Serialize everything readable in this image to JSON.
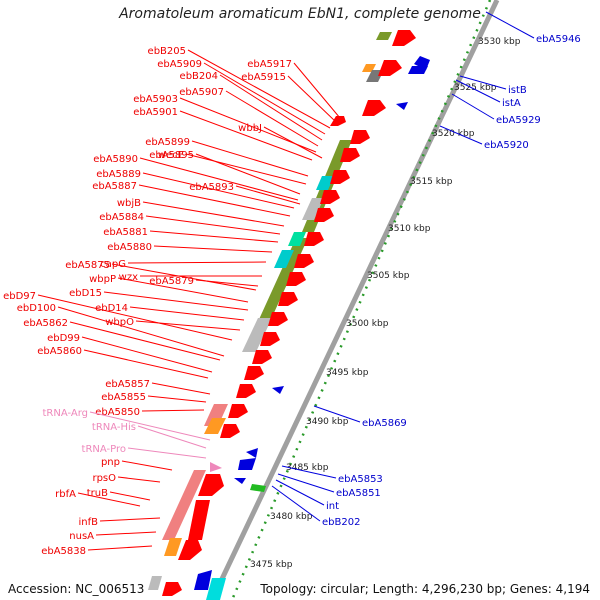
{
  "title": "Aromatoleum aromaticum EbN1, complete genome",
  "footer": {
    "accession": "Accession: NC_006513",
    "summary": "Topology: circular; Length: 4,296,230 bp; Genes: 4,194"
  },
  "scale_labels": [
    "3530 kbp",
    "3525 kbp",
    "3520 kbp",
    "3515 kbp",
    "3510 kbp",
    "3505 kbp",
    "3500 kbp",
    "3495 kbp",
    "3490 kbp",
    "3485 kbp",
    "3480 kbp",
    "3475 kbp"
  ],
  "left_labels": [
    "ebB205",
    "ebA5909",
    "ebA5917",
    "ebB204",
    "ebA5915",
    "ebA5907",
    "ebA5903",
    "ebA5901",
    "wbbJ",
    "wecE",
    "ebA5899",
    "ebA5895",
    "ebA5890",
    "ebA5889",
    "ebA5887",
    "ebA5893",
    "wbjB",
    "ebA5884",
    "ebA5881",
    "ebA5880",
    "capG",
    "ebA5875",
    "wzx",
    "ebA5879",
    "wbpP",
    "ebD15",
    "ebD97",
    "ebD100",
    "ebD14",
    "ebA5862",
    "wbpO",
    "ebD99",
    "ebA5860",
    "ebA5857",
    "ebA5855",
    "ebA5850",
    "pnp",
    "rpsO",
    "truB",
    "rbfA",
    "infB",
    "nusA",
    "ebA5838"
  ],
  "trna_labels": [
    "tRNA-Arg",
    "tRNA-His",
    "tRNA-Pro"
  ],
  "right_labels": [
    "ebA5946",
    "istB",
    "istA",
    "ebA5929",
    "ebA5920",
    "ebA5869",
    "ebA5853",
    "ebA5851",
    "int",
    "ebB202"
  ],
  "colors": {
    "forward": "#ff0000",
    "reverse": "#0000dd",
    "trna": "#ee88bb",
    "scale": "#2a9a2a"
  }
}
